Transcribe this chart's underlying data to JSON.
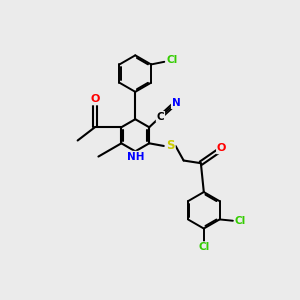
{
  "background_color": "#ebebeb",
  "bond_color": "#000000",
  "atom_colors": {
    "Cl": "#33cc00",
    "N": "#0000ff",
    "O": "#ff0000",
    "S": "#cccc00",
    "C": "#000000",
    "H": "#000000"
  },
  "figsize": [
    3.0,
    3.0
  ],
  "dpi": 100
}
